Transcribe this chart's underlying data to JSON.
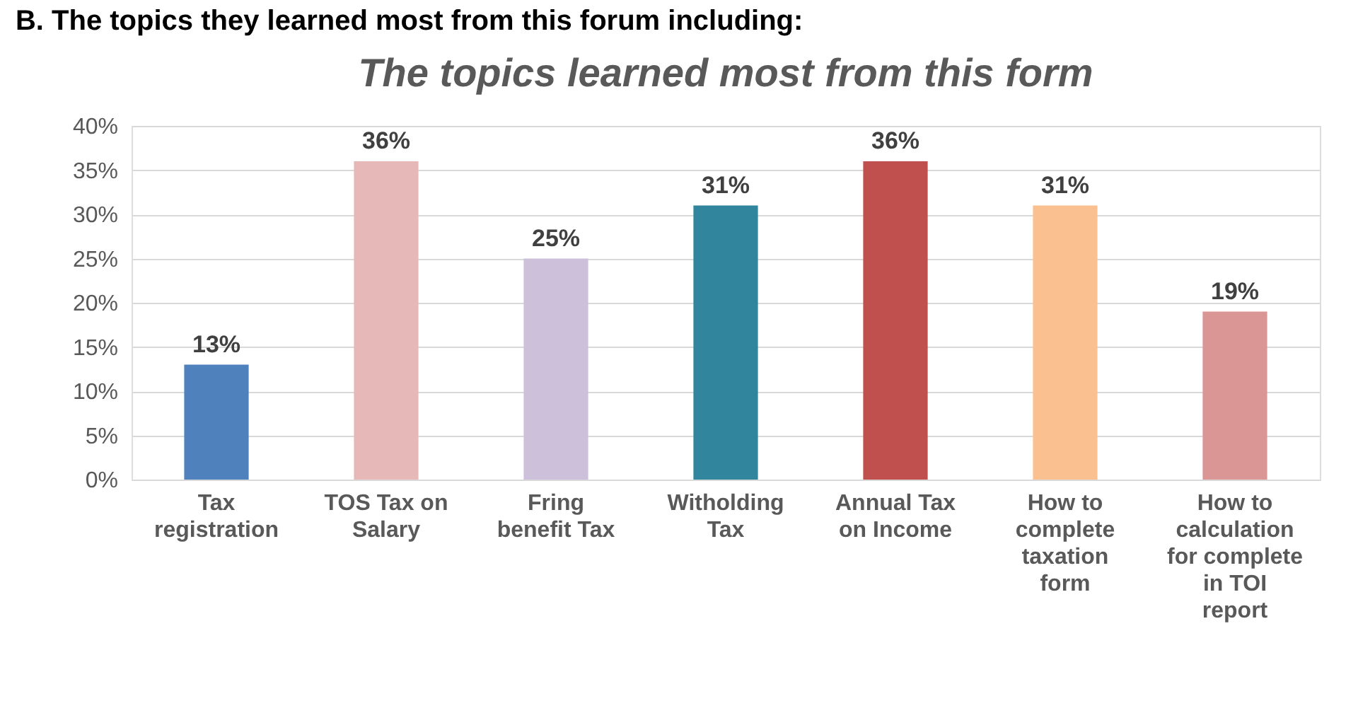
{
  "chart_data": {
    "type": "bar",
    "title": "The topics learned most from this form",
    "annotations": [
      "B.    The topics they learned most from this forum including:"
    ],
    "categories": [
      "Tax registration",
      "TOS Tax on Salary",
      "Fring benefit Tax",
      "Witholding Tax",
      "Annual Tax on Income",
      "How to complete taxation form",
      "How to calculation for complete in TOI report"
    ],
    "values": [
      13,
      36,
      25,
      31,
      36,
      31,
      19
    ],
    "colors": [
      "#4f81bd",
      "#e6b9b8",
      "#ccc0da",
      "#31859c",
      "#c0504d",
      "#fac090",
      "#d99694"
    ],
    "value_labels": [
      "13%",
      "36%",
      "25%",
      "31%",
      "36%",
      "31%",
      "19%"
    ],
    "ylim": [
      0,
      40
    ],
    "yticks": [
      {
        "value": 0,
        "label": "0%"
      },
      {
        "value": 5,
        "label": "5%"
      },
      {
        "value": 10,
        "label": "10%"
      },
      {
        "value": 15,
        "label": "15%"
      },
      {
        "value": 20,
        "label": "20%"
      },
      {
        "value": 25,
        "label": "25%"
      },
      {
        "value": 30,
        "label": "30%"
      },
      {
        "value": 35,
        "label": "35%"
      },
      {
        "value": 40,
        "label": "40%"
      }
    ],
    "grid": "y"
  }
}
